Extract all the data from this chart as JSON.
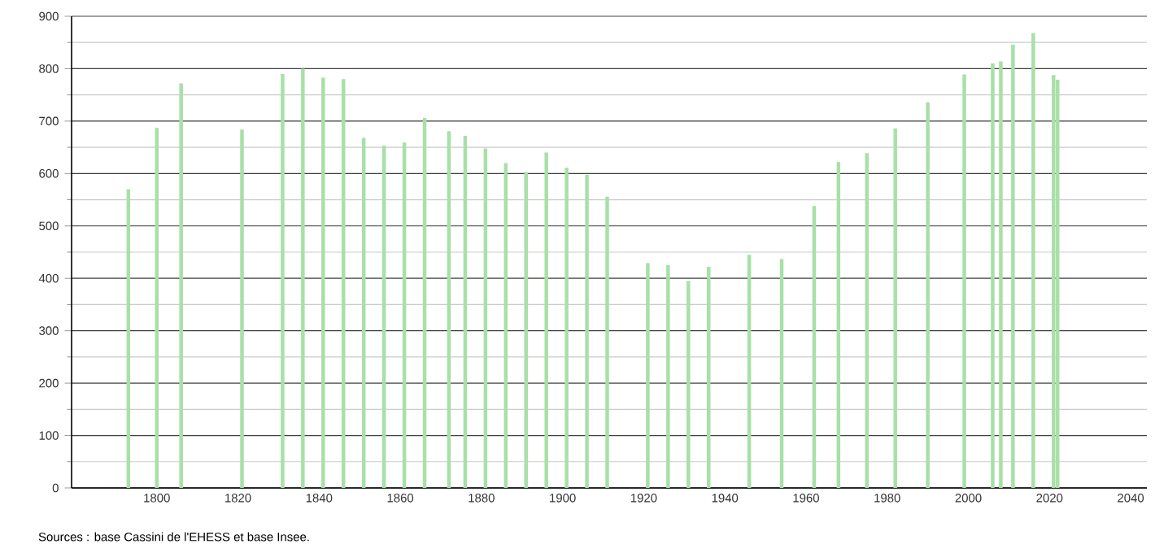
{
  "chart_data": {
    "type": "bar",
    "x": [
      1793,
      1800,
      1806,
      1821,
      1831,
      1836,
      1841,
      1846,
      1851,
      1856,
      1861,
      1866,
      1872,
      1876,
      1881,
      1886,
      1891,
      1896,
      1901,
      1906,
      1911,
      1921,
      1926,
      1931,
      1936,
      1946,
      1954,
      1962,
      1968,
      1975,
      1982,
      1990,
      1999,
      2006,
      2008,
      2011,
      2016,
      2021,
      2022
    ],
    "values": [
      570,
      687,
      772,
      684,
      790,
      800,
      783,
      780,
      668,
      653,
      659,
      706,
      681,
      672,
      648,
      620,
      603,
      640,
      611,
      598,
      556,
      429,
      425,
      395,
      422,
      445,
      437,
      538,
      622,
      639,
      686,
      736,
      789,
      810,
      814,
      846,
      868,
      788,
      779
    ],
    "color": "#a8e0a8",
    "xlim": [
      1779,
      2044
    ],
    "xticks": [
      1800,
      1820,
      1840,
      1860,
      1880,
      1900,
      1920,
      1940,
      1960,
      1980,
      2000,
      2020,
      2040
    ],
    "ylim": [
      0,
      900
    ],
    "yticks": [
      0,
      100,
      200,
      300,
      400,
      500,
      600,
      700,
      800,
      900
    ],
    "grid": "y",
    "annotations": [
      "Sources : base Cassini de l'EHESS et base Insee."
    ]
  }
}
